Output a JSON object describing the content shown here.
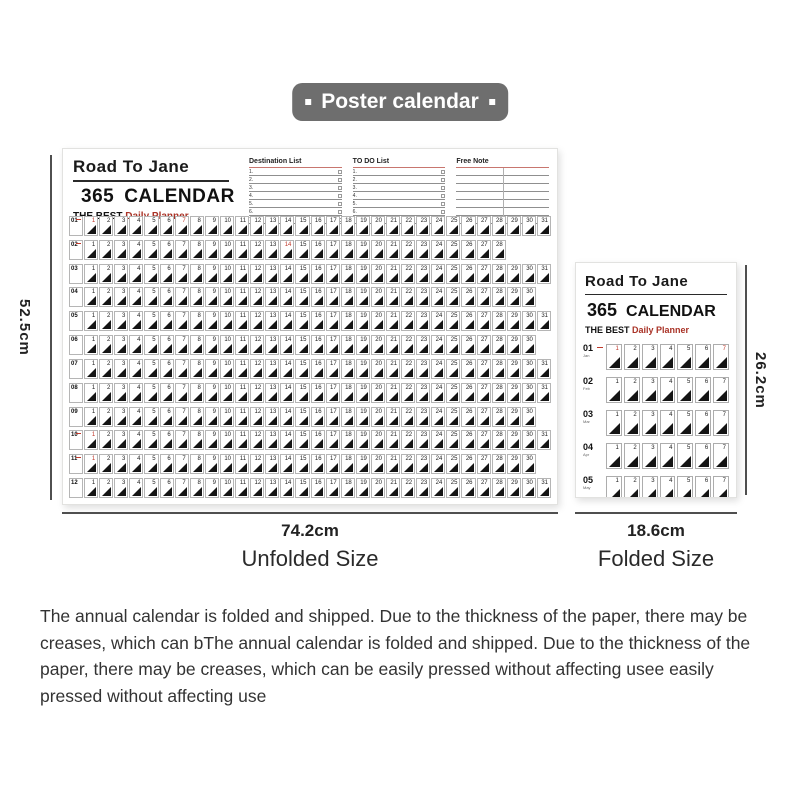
{
  "badge": {
    "label": "Poster calendar"
  },
  "colors": {
    "badge_bg": "#6e6e6e",
    "accent_red": "#a93226",
    "accent_red_light": "#c8766f",
    "date_red": "#c0392b",
    "measure_line": "#4f4f4f"
  },
  "poster_header": {
    "brand": "Road To Jane",
    "big_number": "365",
    "big_word": "CALENDAR",
    "tagline_black": "THE BEST",
    "tagline_red": "Daily Planner"
  },
  "lists": [
    {
      "title": "Destination List",
      "lines": 7,
      "numbered": true,
      "checkboxes": true
    },
    {
      "title": "TO DO List",
      "lines": 7,
      "numbered": true,
      "checkboxes": true
    },
    {
      "title": "Free Note",
      "lines": 7,
      "numbered": false,
      "checkboxes": false
    }
  ],
  "calendar_months": [
    {
      "label": "01",
      "days": 31,
      "red_days": [
        1,
        7
      ]
    },
    {
      "label": "02",
      "days": 28,
      "red_days": [
        14
      ]
    },
    {
      "label": "03",
      "days": 31,
      "red_days": []
    },
    {
      "label": "04",
      "days": 30,
      "red_days": []
    },
    {
      "label": "05",
      "days": 31,
      "red_days": []
    },
    {
      "label": "06",
      "days": 30,
      "red_days": []
    },
    {
      "label": "07",
      "days": 31,
      "red_days": []
    },
    {
      "label": "08",
      "days": 31,
      "red_days": []
    },
    {
      "label": "09",
      "days": 30,
      "red_days": []
    },
    {
      "label": "10",
      "days": 31,
      "red_days": [
        1
      ]
    },
    {
      "label": "11",
      "days": 30,
      "red_days": [
        1
      ]
    },
    {
      "label": "12",
      "days": 31,
      "red_days": []
    }
  ],
  "folded_rows": [
    {
      "label": "01",
      "sub": "Jan",
      "days": 7,
      "red_days": [
        1,
        7
      ]
    },
    {
      "label": "02",
      "sub": "Feb",
      "days": 7,
      "red_days": []
    },
    {
      "label": "03",
      "sub": "Mar",
      "days": 7,
      "red_days": []
    },
    {
      "label": "04",
      "sub": "Apr",
      "days": 7,
      "red_days": []
    },
    {
      "label": "05",
      "sub": "May",
      "days": 7,
      "red_days": []
    }
  ],
  "dimensions": {
    "unfolded": {
      "width": "74.2cm",
      "height": "52.5cm",
      "caption": "Unfolded Size"
    },
    "folded": {
      "width": "18.6cm",
      "height": "26.2cm",
      "caption": "Folded Size"
    }
  },
  "description": "The annual calendar is folded and shipped. Due to the thickness of the paper, there may be creases, which can bThe annual calendar is folded and shipped. Due to the thickness of the paper, there may be creases, which can be easily pressed without affecting usee easily pressed without affecting use"
}
